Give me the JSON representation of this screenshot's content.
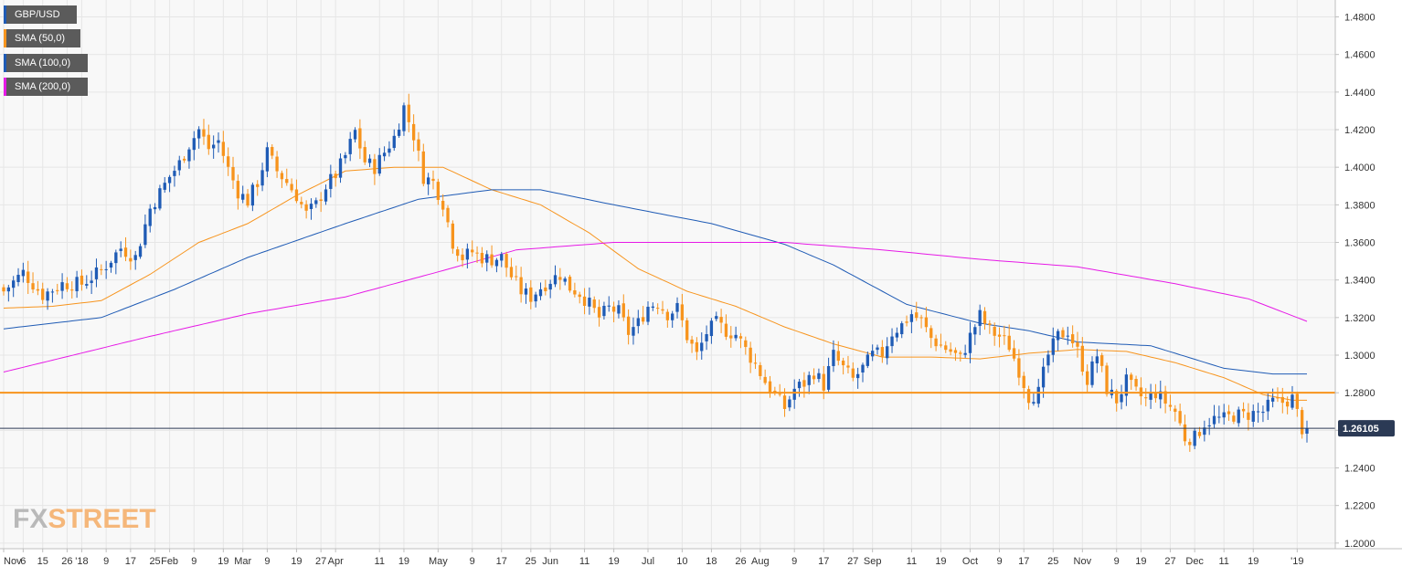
{
  "chart_data": {
    "type": "candlestick",
    "symbol": "GBP/USD",
    "ylim": [
      1.197,
      1.489
    ],
    "y_ticks": [
      1.2,
      1.22,
      1.24,
      1.26,
      1.28,
      1.3,
      1.32,
      1.34,
      1.36,
      1.38,
      1.4,
      1.42,
      1.44,
      1.46,
      1.48
    ],
    "y_tick_labels": [
      "1.2000",
      "1.2200",
      "1.2400",
      "1.2600",
      "1.2800",
      "1.3000",
      "1.3200",
      "1.3400",
      "1.3600",
      "1.3800",
      "1.4000",
      "1.4200",
      "1.4400",
      "1.4600",
      "1.4800"
    ],
    "x_tick_labels": [
      "Nov",
      "6",
      "15",
      "26",
      "'18",
      "9",
      "17",
      "25",
      "Feb",
      "9",
      "19",
      "Mar",
      "9",
      "19",
      "27",
      "Apr",
      "11",
      "19",
      "May",
      "9",
      "17",
      "25",
      "Jun",
      "11",
      "19",
      "Jul",
      "10",
      "18",
      "26",
      "Aug",
      "9",
      "17",
      "27",
      "Sep",
      "11",
      "19",
      "Oct",
      "9",
      "17",
      "25",
      "Nov",
      "9",
      "19",
      "27",
      "Dec",
      "11",
      "19",
      "'19"
    ],
    "x_tick_positions": [
      0,
      4,
      8,
      13,
      16,
      21,
      26,
      31,
      34,
      39,
      45,
      49,
      54,
      60,
      65,
      68,
      77,
      82,
      89,
      96,
      102,
      108,
      112,
      119,
      125,
      132,
      139,
      145,
      151,
      155,
      162,
      168,
      174,
      178,
      186,
      192,
      198,
      204,
      209,
      215,
      221,
      228,
      233,
      239,
      244,
      250,
      256,
      265
    ],
    "n_bars": 268,
    "last_price": 1.26105,
    "last_price_label": "1.26105",
    "horizontal_levels": [
      1.28,
      1.26105
    ],
    "colors": {
      "up": "#1f5bb5",
      "down": "#f7941d",
      "sma50": "#f7941d",
      "sma100": "#1f5bb5",
      "sma200": "#e619e6",
      "level": "#f7941d",
      "last": "#2b3a55",
      "grid": "#e6e6e6"
    },
    "series": [
      {
        "name": "GBP/USD",
        "color": "#1f5bb5"
      },
      {
        "name": "SMA (50,0)",
        "color": "#f7941d",
        "anchors": [
          [
            0,
            1.325
          ],
          [
            10,
            1.326
          ],
          [
            20,
            1.329
          ],
          [
            30,
            1.343
          ],
          [
            40,
            1.36
          ],
          [
            50,
            1.37
          ],
          [
            60,
            1.385
          ],
          [
            70,
            1.398
          ],
          [
            80,
            1.4
          ],
          [
            90,
            1.4
          ],
          [
            100,
            1.388
          ],
          [
            110,
            1.38
          ],
          [
            120,
            1.365
          ],
          [
            130,
            1.346
          ],
          [
            140,
            1.334
          ],
          [
            150,
            1.326
          ],
          [
            160,
            1.315
          ],
          [
            170,
            1.306
          ],
          [
            180,
            1.299
          ],
          [
            190,
            1.299
          ],
          [
            200,
            1.298
          ],
          [
            210,
            1.301
          ],
          [
            220,
            1.303
          ],
          [
            230,
            1.302
          ],
          [
            240,
            1.296
          ],
          [
            250,
            1.288
          ],
          [
            258,
            1.279
          ],
          [
            264,
            1.276
          ],
          [
            268,
            1.276
          ]
        ]
      },
      {
        "name": "SMA (100,0)",
        "color": "#1f5bb5",
        "anchors": [
          [
            0,
            1.314
          ],
          [
            20,
            1.32
          ],
          [
            35,
            1.335
          ],
          [
            50,
            1.352
          ],
          [
            70,
            1.37
          ],
          [
            85,
            1.383
          ],
          [
            100,
            1.388
          ],
          [
            110,
            1.388
          ],
          [
            125,
            1.38
          ],
          [
            145,
            1.37
          ],
          [
            160,
            1.359
          ],
          [
            170,
            1.348
          ],
          [
            185,
            1.327
          ],
          [
            200,
            1.317
          ],
          [
            210,
            1.313
          ],
          [
            220,
            1.307
          ],
          [
            235,
            1.305
          ],
          [
            250,
            1.293
          ],
          [
            260,
            1.29
          ],
          [
            268,
            1.29
          ]
        ]
      },
      {
        "name": "SMA (200,0)",
        "color": "#e619e6",
        "anchors": [
          [
            0,
            1.291
          ],
          [
            30,
            1.31
          ],
          [
            50,
            1.322
          ],
          [
            70,
            1.331
          ],
          [
            90,
            1.345
          ],
          [
            105,
            1.356
          ],
          [
            125,
            1.36
          ],
          [
            145,
            1.36
          ],
          [
            160,
            1.36
          ],
          [
            180,
            1.356
          ],
          [
            200,
            1.351
          ],
          [
            220,
            1.347
          ],
          [
            240,
            1.338
          ],
          [
            255,
            1.33
          ],
          [
            268,
            1.317
          ]
        ]
      }
    ],
    "close_path": [
      [
        0,
        1.334
      ],
      [
        4,
        1.344
      ],
      [
        8,
        1.332
      ],
      [
        12,
        1.338
      ],
      [
        16,
        1.338
      ],
      [
        20,
        1.345
      ],
      [
        24,
        1.357
      ],
      [
        27,
        1.352
      ],
      [
        30,
        1.378
      ],
      [
        34,
        1.395
      ],
      [
        36,
        1.402
      ],
      [
        38,
        1.412
      ],
      [
        40,
        1.42
      ],
      [
        42,
        1.41
      ],
      [
        44,
        1.414
      ],
      [
        46,
        1.399
      ],
      [
        48,
        1.387
      ],
      [
        50,
        1.382
      ],
      [
        52,
        1.392
      ],
      [
        54,
        1.408
      ],
      [
        56,
        1.398
      ],
      [
        58,
        1.392
      ],
      [
        60,
        1.385
      ],
      [
        62,
        1.375
      ],
      [
        64,
        1.38
      ],
      [
        66,
        1.39
      ],
      [
        68,
        1.396
      ],
      [
        70,
        1.406
      ],
      [
        72,
        1.419
      ],
      [
        74,
        1.403
      ],
      [
        76,
        1.4
      ],
      [
        78,
        1.408
      ],
      [
        80,
        1.416
      ],
      [
        82,
        1.432
      ],
      [
        84,
        1.417
      ],
      [
        86,
        1.395
      ],
      [
        88,
        1.392
      ],
      [
        90,
        1.381
      ],
      [
        92,
        1.36
      ],
      [
        94,
        1.352
      ],
      [
        96,
        1.355
      ],
      [
        98,
        1.352
      ],
      [
        100,
        1.351
      ],
      [
        102,
        1.352
      ],
      [
        104,
        1.342
      ],
      [
        106,
        1.334
      ],
      [
        108,
        1.331
      ],
      [
        110,
        1.336
      ],
      [
        112,
        1.34
      ],
      [
        114,
        1.343
      ],
      [
        116,
        1.336
      ],
      [
        118,
        1.333
      ],
      [
        120,
        1.327
      ],
      [
        122,
        1.32
      ],
      [
        124,
        1.325
      ],
      [
        126,
        1.323
      ],
      [
        128,
        1.312
      ],
      [
        130,
        1.317
      ],
      [
        132,
        1.326
      ],
      [
        134,
        1.328
      ],
      [
        136,
        1.322
      ],
      [
        138,
        1.325
      ],
      [
        140,
        1.31
      ],
      [
        142,
        1.3
      ],
      [
        144,
        1.312
      ],
      [
        146,
        1.317
      ],
      [
        148,
        1.313
      ],
      [
        150,
        1.311
      ],
      [
        152,
        1.303
      ],
      [
        154,
        1.295
      ],
      [
        156,
        1.286
      ],
      [
        158,
        1.279
      ],
      [
        160,
        1.272
      ],
      [
        162,
        1.282
      ],
      [
        164,
        1.285
      ],
      [
        166,
        1.291
      ],
      [
        168,
        1.284
      ],
      [
        170,
        1.3
      ],
      [
        172,
        1.293
      ],
      [
        174,
        1.287
      ],
      [
        176,
        1.293
      ],
      [
        178,
        1.3
      ],
      [
        180,
        1.301
      ],
      [
        182,
        1.312
      ],
      [
        184,
        1.316
      ],
      [
        186,
        1.322
      ],
      [
        188,
        1.318
      ],
      [
        190,
        1.309
      ],
      [
        192,
        1.305
      ],
      [
        194,
        1.302
      ],
      [
        196,
        1.298
      ],
      [
        198,
        1.31
      ],
      [
        200,
        1.321
      ],
      [
        202,
        1.313
      ],
      [
        204,
        1.31
      ],
      [
        206,
        1.305
      ],
      [
        208,
        1.292
      ],
      [
        210,
        1.278
      ],
      [
        212,
        1.28
      ],
      [
        214,
        1.3
      ],
      [
        216,
        1.31
      ],
      [
        218,
        1.313
      ],
      [
        220,
        1.302
      ],
      [
        222,
        1.287
      ],
      [
        224,
        1.3
      ],
      [
        226,
        1.282
      ],
      [
        228,
        1.276
      ],
      [
        230,
        1.286
      ],
      [
        232,
        1.28
      ],
      [
        234,
        1.276
      ],
      [
        236,
        1.28
      ],
      [
        238,
        1.275
      ],
      [
        240,
        1.27
      ],
      [
        242,
        1.256
      ],
      [
        244,
        1.256
      ],
      [
        246,
        1.264
      ],
      [
        248,
        1.266
      ],
      [
        250,
        1.266
      ],
      [
        252,
        1.268
      ],
      [
        254,
        1.268
      ],
      [
        256,
        1.269
      ],
      [
        258,
        1.27
      ],
      [
        260,
        1.275
      ],
      [
        262,
        1.275
      ],
      [
        264,
        1.277
      ],
      [
        266,
        1.261
      ]
    ]
  },
  "watermark": {
    "fx": "FX",
    "street": "STREET"
  }
}
